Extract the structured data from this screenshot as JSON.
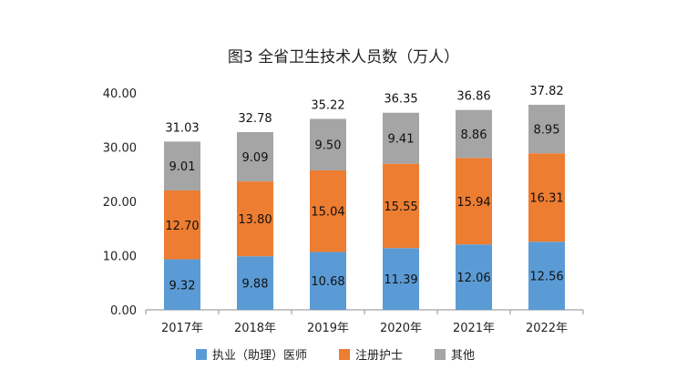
{
  "chart_data": {
    "type": "bar",
    "stacked": true,
    "title": "图3 全省卫生技术人员数（万人）",
    "xlabel": "",
    "ylabel": "",
    "categories": [
      "2017年",
      "2018年",
      "2019年",
      "2020年",
      "2021年",
      "2022年"
    ],
    "ylim": [
      0,
      40
    ],
    "yticks": [
      "0.00",
      "10.00",
      "20.00",
      "30.00",
      "40.00"
    ],
    "grid": false,
    "legend_position": "bottom",
    "series": [
      {
        "name": "执业（助理）医师",
        "color": "#5B9BD5",
        "values": [
          9.32,
          9.88,
          10.68,
          11.39,
          12.06,
          12.56
        ],
        "labels": [
          "9.32",
          "9.88",
          "10.68",
          "11.39",
          "12.06",
          "12.56"
        ]
      },
      {
        "name": "注册护士",
        "color": "#ED7D31",
        "values": [
          12.7,
          13.8,
          15.04,
          15.55,
          15.94,
          16.31
        ],
        "labels": [
          "12.70",
          "13.80",
          "15.04",
          "15.55",
          "15.94",
          "16.31"
        ]
      },
      {
        "name": "其他",
        "color": "#A5A5A5",
        "values": [
          9.01,
          9.09,
          9.5,
          9.41,
          8.86,
          8.95
        ],
        "labels": [
          "9.01",
          "9.09",
          "9.50",
          "9.41",
          "8.86",
          "8.95"
        ]
      }
    ],
    "totals": [
      31.03,
      32.78,
      35.22,
      36.35,
      36.86,
      37.82
    ],
    "total_labels": [
      "31.03",
      "32.78",
      "35.22",
      "36.35",
      "36.86",
      "37.82"
    ]
  }
}
